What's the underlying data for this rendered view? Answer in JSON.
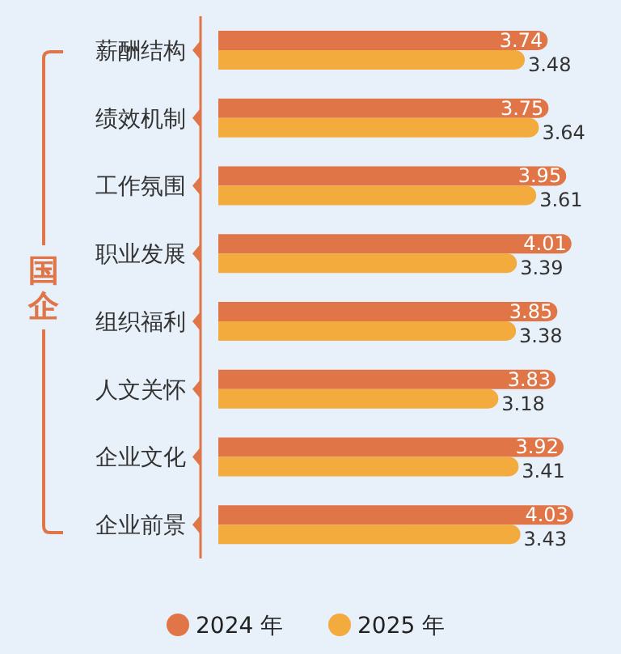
{
  "chart_data": {
    "type": "bar",
    "orientation": "horizontal",
    "ylabel": "国企",
    "categories": [
      "薪酬结构",
      "绩效机制",
      "工作氛围",
      "职业发展",
      "组织福利",
      "人文关怀",
      "企业文化",
      "企业前景"
    ],
    "series": [
      {
        "name": "2024 年",
        "color": "#e07548",
        "values": [
          3.74,
          3.75,
          3.95,
          4.01,
          3.85,
          3.83,
          3.92,
          4.03
        ]
      },
      {
        "name": "2025 年",
        "color": "#f2ab3c",
        "values": [
          3.48,
          3.64,
          3.61,
          3.39,
          3.38,
          3.18,
          3.41,
          3.43
        ]
      }
    ],
    "data_labels": true,
    "legend": "bottom"
  }
}
